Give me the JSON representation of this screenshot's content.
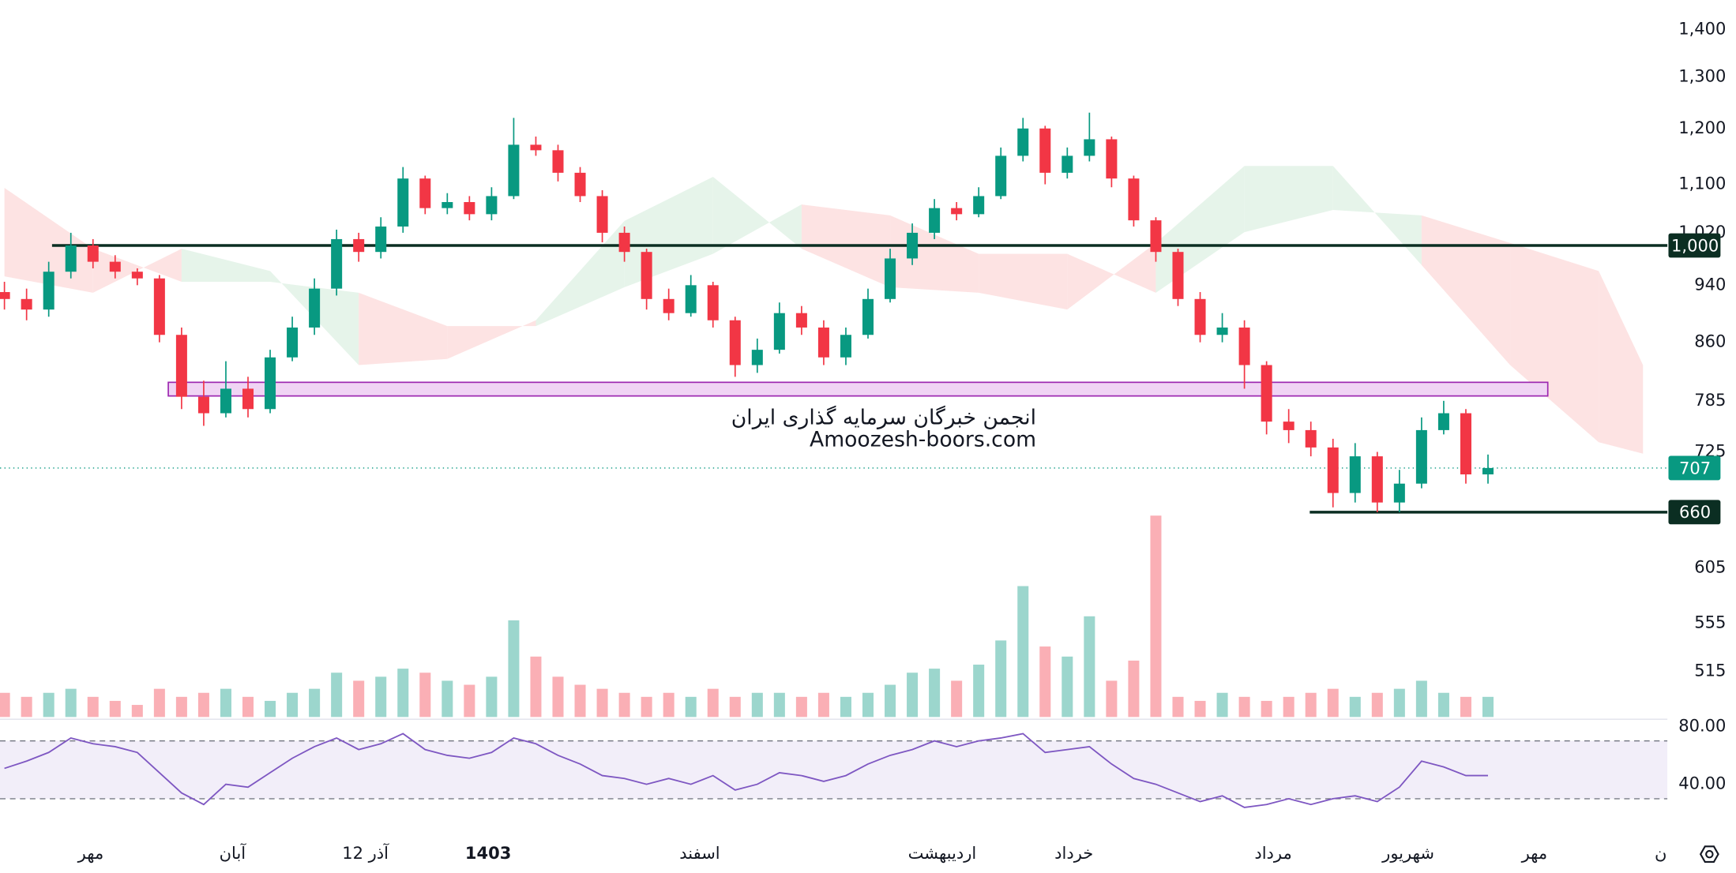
{
  "chart_data": {
    "type": "candlestick",
    "log_scale": true,
    "xlim": [
      0,
      75
    ],
    "ylim": [
      478,
      1466
    ],
    "yticks": [
      {
        "value": 1400,
        "label": "1,400"
      },
      {
        "value": 1300,
        "label": "1,300"
      },
      {
        "value": 1200,
        "label": "1,200"
      },
      {
        "value": 1100,
        "label": "1,100"
      },
      {
        "value": 1020,
        "label": "1,020"
      },
      940,
      860,
      785,
      725,
      605,
      555,
      515
    ],
    "xticks": [
      {
        "value": 3.9,
        "label": "مهر"
      },
      {
        "value": 10.3,
        "label": "آبان"
      },
      {
        "value": 16.3,
        "label": "12 آذر"
      },
      {
        "value": 21.85,
        "label": "1403",
        "bold": true
      },
      {
        "value": 31.4,
        "label": "اسفند"
      },
      {
        "value": 42.35,
        "label": "اردیبهشت"
      },
      {
        "value": 48.3,
        "label": "خرداد"
      },
      {
        "value": 57.3,
        "label": "مرداد"
      },
      {
        "value": 63.4,
        "label": "شهریور"
      },
      {
        "value": 69.1,
        "label": "مهر"
      },
      {
        "value": 74.8,
        "label": "ن"
      }
    ],
    "open": [
      930,
      920,
      905,
      960,
      1000,
      975,
      960,
      950,
      870,
      790,
      770,
      800,
      775,
      840,
      880,
      935,
      1010,
      990,
      1030,
      1110,
      1060,
      1070,
      1050,
      1080,
      1170,
      1160,
      1120,
      1080,
      1020,
      990,
      920,
      900,
      940,
      890,
      830,
      850,
      900,
      880,
      840,
      870,
      920,
      980,
      1020,
      1060,
      1050,
      1080,
      1150,
      1200,
      1120,
      1150,
      1180,
      1110,
      1040,
      990,
      920,
      870,
      880,
      830,
      760,
      750,
      730,
      680,
      720,
      670,
      690,
      750,
      770,
      700
    ],
    "high": [
      945,
      935,
      975,
      1020,
      1010,
      985,
      965,
      955,
      880,
      810,
      835,
      815,
      850,
      895,
      950,
      1025,
      1020,
      1045,
      1130,
      1115,
      1085,
      1080,
      1095,
      1220,
      1185,
      1170,
      1130,
      1090,
      1030,
      995,
      935,
      955,
      945,
      895,
      865,
      915,
      910,
      890,
      880,
      935,
      995,
      1035,
      1075,
      1070,
      1095,
      1165,
      1220,
      1205,
      1165,
      1230,
      1185,
      1115,
      1045,
      995,
      930,
      900,
      890,
      835,
      775,
      760,
      740,
      735,
      725,
      705,
      765,
      785,
      775,
      722
    ],
    "low": [
      905,
      890,
      895,
      950,
      965,
      950,
      940,
      860,
      775,
      755,
      765,
      765,
      770,
      835,
      870,
      925,
      975,
      980,
      1020,
      1050,
      1050,
      1040,
      1040,
      1075,
      1150,
      1105,
      1070,
      1005,
      975,
      905,
      890,
      895,
      880,
      815,
      820,
      845,
      870,
      830,
      830,
      865,
      915,
      970,
      1010,
      1040,
      1045,
      1075,
      1140,
      1100,
      1110,
      1140,
      1095,
      1030,
      975,
      910,
      860,
      860,
      800,
      745,
      735,
      720,
      665,
      670,
      660,
      660,
      685,
      745,
      690,
      690
    ],
    "close": [
      920,
      905,
      960,
      1000,
      975,
      960,
      950,
      870,
      790,
      770,
      800,
      775,
      840,
      880,
      935,
      1010,
      990,
      1030,
      1110,
      1060,
      1070,
      1050,
      1080,
      1170,
      1160,
      1120,
      1080,
      1020,
      990,
      920,
      900,
      940,
      890,
      830,
      850,
      900,
      880,
      840,
      870,
      920,
      980,
      1020,
      1060,
      1050,
      1080,
      1150,
      1200,
      1120,
      1150,
      1180,
      1110,
      1040,
      990,
      920,
      870,
      880,
      830,
      760,
      750,
      730,
      680,
      720,
      670,
      690,
      750,
      770,
      700,
      707
    ],
    "up_color": "#089981",
    "down_color": "#f23645",
    "volume": {
      "values": [
        12,
        10,
        12,
        14,
        10,
        8,
        6,
        14,
        10,
        12,
        14,
        10,
        8,
        12,
        14,
        22,
        18,
        20,
        24,
        22,
        18,
        16,
        20,
        48,
        30,
        20,
        16,
        14,
        12,
        10,
        12,
        10,
        14,
        10,
        12,
        12,
        10,
        12,
        10,
        12,
        16,
        22,
        24,
        18,
        26,
        38,
        65,
        35,
        30,
        50,
        18,
        28,
        100,
        10,
        8,
        12,
        10,
        8,
        10,
        12,
        14,
        10,
        12,
        14,
        18,
        12,
        10,
        10
      ],
      "ylim": [
        0,
        100
      ]
    },
    "cloud": {
      "x": [
        0,
        4,
        8,
        12,
        16,
        20,
        24,
        28,
        32,
        36,
        40,
        44,
        48,
        52,
        56,
        60,
        64,
        68,
        72,
        74
      ],
      "span_a": [
        953,
        929,
        995,
        961,
        830,
        838,
        890,
        1039,
        1113,
        995,
        937,
        929,
        905,
        1004,
        1132,
        1132,
        970,
        830,
        736,
        723
      ],
      "span_b": [
        1094,
        995,
        945,
        945,
        929,
        882,
        882,
        937,
        987,
        1066,
        1048,
        987,
        987,
        929,
        1021,
        1057,
        1048,
        1004,
        961,
        830
      ],
      "up_color": "#e6f4ea",
      "down_color": "#fde3e3"
    },
    "zone": {
      "x": [
        7.4,
        69.7
      ],
      "low": 791,
      "high": 808,
      "color": "#f0d4f4",
      "border": "#9c27b0"
    },
    "levels": [
      {
        "value": 1000,
        "label": "1,000",
        "x": 2.15
      },
      {
        "value": 660,
        "x": 58.95
      }
    ],
    "last_price": 707,
    "rsi": {
      "values": [
        51,
        56,
        62,
        72,
        68,
        66,
        62,
        48,
        34,
        26,
        40,
        38,
        48,
        58,
        66,
        72,
        64,
        68,
        75,
        64,
        60,
        58,
        62,
        72,
        68,
        60,
        54,
        46,
        44,
        40,
        44,
        40,
        46,
        36,
        40,
        48,
        46,
        42,
        46,
        54,
        60,
        64,
        70,
        66,
        70,
        72,
        75,
        62,
        64,
        66,
        54,
        44,
        40,
        34,
        28,
        32,
        24,
        26,
        30,
        26,
        30,
        32,
        28,
        38,
        56,
        52,
        46,
        46
      ],
      "ylim": [
        10,
        85
      ],
      "yticks": [
        {
          "value": 80,
          "label": "80.00"
        },
        {
          "value": 40,
          "label": "40.00"
        }
      ],
      "bands": [
        30,
        70
      ],
      "color": "#7e57c2"
    },
    "watermark": [
      "انجمن خبرگان سرمایه گذاری ایران",
      "Amoozesh-boors.com"
    ]
  }
}
